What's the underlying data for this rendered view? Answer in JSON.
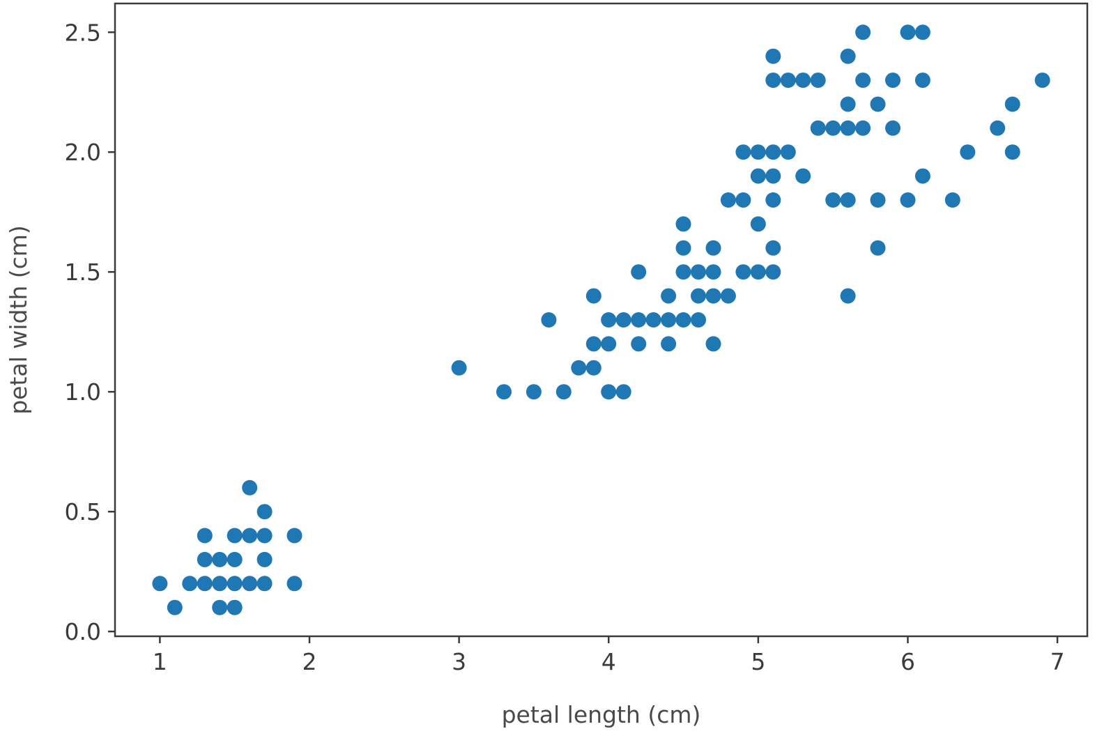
{
  "chart_data": {
    "type": "scatter",
    "title": "",
    "xlabel": "petal length (cm)",
    "ylabel": "petal width (cm)",
    "xlim": [
      0.7,
      7.2
    ],
    "ylim": [
      -0.02,
      2.62
    ],
    "xticks": [
      1,
      2,
      3,
      4,
      5,
      6,
      7
    ],
    "xtick_labels": [
      "1",
      "2",
      "3",
      "4",
      "5",
      "6",
      "7"
    ],
    "yticks": [
      0.0,
      0.5,
      1.0,
      1.5,
      2.0,
      2.5
    ],
    "ytick_labels": [
      "0.0",
      "0.5",
      "1.0",
      "1.5",
      "2.0",
      "2.5"
    ],
    "grid": false,
    "marker_color": "#1f77b4",
    "series": [
      {
        "points": [
          [
            1.0,
            0.2
          ],
          [
            1.1,
            0.1
          ],
          [
            1.2,
            0.2
          ],
          [
            1.3,
            0.2
          ],
          [
            1.3,
            0.3
          ],
          [
            1.3,
            0.4
          ],
          [
            1.4,
            0.1
          ],
          [
            1.4,
            0.2
          ],
          [
            1.4,
            0.3
          ],
          [
            1.5,
            0.1
          ],
          [
            1.5,
            0.2
          ],
          [
            1.5,
            0.3
          ],
          [
            1.5,
            0.4
          ],
          [
            1.6,
            0.2
          ],
          [
            1.6,
            0.4
          ],
          [
            1.6,
            0.6
          ],
          [
            1.7,
            0.2
          ],
          [
            1.7,
            0.3
          ],
          [
            1.7,
            0.4
          ],
          [
            1.7,
            0.5
          ],
          [
            1.9,
            0.2
          ],
          [
            1.9,
            0.4
          ],
          [
            3.0,
            1.1
          ],
          [
            3.3,
            1.0
          ],
          [
            3.5,
            1.0
          ],
          [
            3.6,
            1.3
          ],
          [
            3.7,
            1.0
          ],
          [
            3.8,
            1.1
          ],
          [
            3.9,
            1.1
          ],
          [
            3.9,
            1.2
          ],
          [
            3.9,
            1.4
          ],
          [
            4.0,
            1.0
          ],
          [
            4.0,
            1.2
          ],
          [
            4.0,
            1.3
          ],
          [
            4.1,
            1.0
          ],
          [
            4.1,
            1.3
          ],
          [
            4.2,
            1.2
          ],
          [
            4.2,
            1.3
          ],
          [
            4.2,
            1.5
          ],
          [
            4.3,
            1.3
          ],
          [
            4.4,
            1.2
          ],
          [
            4.4,
            1.3
          ],
          [
            4.4,
            1.4
          ],
          [
            4.5,
            1.3
          ],
          [
            4.5,
            1.5
          ],
          [
            4.5,
            1.6
          ],
          [
            4.5,
            1.7
          ],
          [
            4.6,
            1.3
          ],
          [
            4.6,
            1.4
          ],
          [
            4.6,
            1.5
          ],
          [
            4.7,
            1.2
          ],
          [
            4.7,
            1.4
          ],
          [
            4.7,
            1.5
          ],
          [
            4.7,
            1.6
          ],
          [
            4.8,
            1.4
          ],
          [
            4.8,
            1.8
          ],
          [
            4.9,
            1.5
          ],
          [
            4.9,
            1.8
          ],
          [
            4.9,
            2.0
          ],
          [
            5.0,
            1.5
          ],
          [
            5.0,
            1.7
          ],
          [
            5.0,
            1.9
          ],
          [
            5.0,
            2.0
          ],
          [
            5.1,
            1.5
          ],
          [
            5.1,
            1.6
          ],
          [
            5.1,
            1.8
          ],
          [
            5.1,
            1.9
          ],
          [
            5.1,
            2.0
          ],
          [
            5.1,
            2.3
          ],
          [
            5.1,
            2.4
          ],
          [
            5.2,
            2.0
          ],
          [
            5.2,
            2.3
          ],
          [
            5.3,
            1.9
          ],
          [
            5.3,
            2.3
          ],
          [
            5.4,
            2.1
          ],
          [
            5.4,
            2.3
          ],
          [
            5.5,
            1.8
          ],
          [
            5.5,
            2.1
          ],
          [
            5.6,
            1.4
          ],
          [
            5.6,
            1.8
          ],
          [
            5.6,
            2.1
          ],
          [
            5.6,
            2.2
          ],
          [
            5.6,
            2.4
          ],
          [
            5.7,
            2.1
          ],
          [
            5.7,
            2.3
          ],
          [
            5.7,
            2.5
          ],
          [
            5.8,
            1.6
          ],
          [
            5.8,
            1.8
          ],
          [
            5.8,
            2.2
          ],
          [
            5.9,
            2.1
          ],
          [
            5.9,
            2.3
          ],
          [
            6.0,
            1.8
          ],
          [
            6.0,
            2.5
          ],
          [
            6.1,
            1.9
          ],
          [
            6.1,
            2.3
          ],
          [
            6.1,
            2.5
          ],
          [
            6.3,
            1.8
          ],
          [
            6.4,
            2.0
          ],
          [
            6.6,
            2.1
          ],
          [
            6.7,
            2.0
          ],
          [
            6.7,
            2.2
          ],
          [
            6.9,
            2.3
          ]
        ]
      }
    ]
  }
}
